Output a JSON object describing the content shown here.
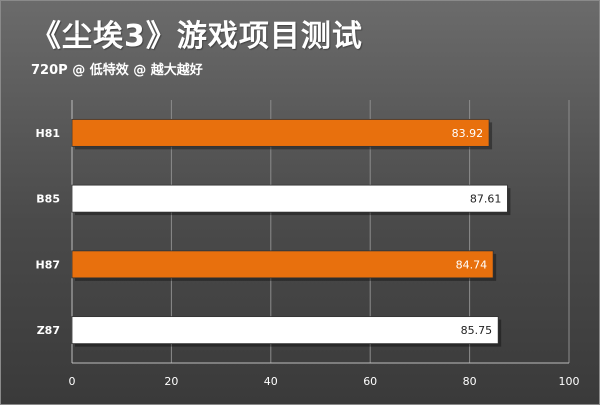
{
  "header": {
    "title": "《尘埃3》游戏项目测试",
    "subtitle": "720P @ 低特效 @ 越大越好"
  },
  "chart_data": {
    "type": "bar",
    "orientation": "horizontal",
    "title": "《尘埃3》游戏项目测试",
    "subtitle": "720P @ 低特效 @ 越大越好",
    "categories": [
      "H81",
      "B85",
      "H87",
      "Z87"
    ],
    "values": [
      83.92,
      87.61,
      84.74,
      85.75
    ],
    "value_labels": [
      "83.92",
      "87.61",
      "84.74",
      "85.75"
    ],
    "bar_colors": [
      "#e8700d",
      "#ffffff",
      "#e8700d",
      "#ffffff"
    ],
    "label_colors": [
      "#ffffff",
      "#222222",
      "#ffffff",
      "#222222"
    ],
    "xlim": [
      0,
      100
    ],
    "xticks": [
      0,
      20,
      40,
      60,
      80,
      100
    ],
    "xtick_labels": [
      "0",
      "20",
      "40",
      "60",
      "80",
      "100"
    ],
    "xlabel": "",
    "ylabel": "",
    "grid": "vertical",
    "legend": "none",
    "colors": {
      "grid": "#8c8c8c",
      "bar_outline": "#333333"
    }
  }
}
